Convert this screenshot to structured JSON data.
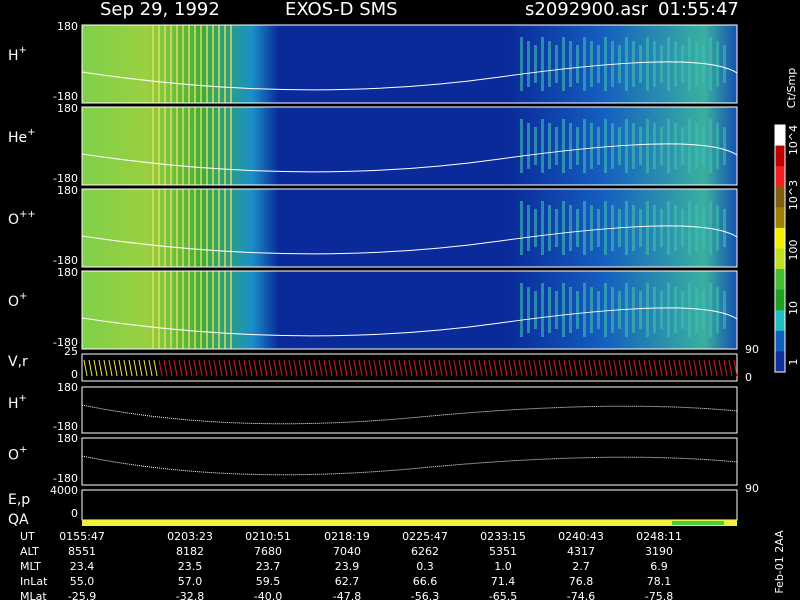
{
  "header": {
    "date": "Sep 29, 1992",
    "instrument": "EXOS-D SMS",
    "file": "s2092900.asr",
    "time": "01:55:47"
  },
  "panels": [
    {
      "label": "H",
      "sup": "+",
      "ticks": [
        "180",
        "-180"
      ]
    },
    {
      "label": "He",
      "sup": "+",
      "ticks": [
        "180",
        "-180"
      ]
    },
    {
      "label": "O",
      "sup": "++",
      "ticks": [
        "180",
        "-180"
      ]
    },
    {
      "label": "O",
      "sup": "+",
      "ticks": [
        "180",
        "-180"
      ]
    }
  ],
  "vr": {
    "label": "V,r",
    "left_ticks": [
      "25",
      "0"
    ],
    "right_ticks": [
      "90",
      "0"
    ]
  },
  "line_panels": [
    {
      "label": "H",
      "sup": "+",
      "ticks": [
        "180",
        "-180"
      ]
    },
    {
      "label": "O",
      "sup": "+",
      "ticks": [
        "180",
        "-180"
      ]
    }
  ],
  "ep": {
    "label": "E,p",
    "left_tick": "4000",
    "right_tick": "90"
  },
  "qa": {
    "label": "QA",
    "tick": "0"
  },
  "colorbar": {
    "title": "Ct/Smp",
    "labels": [
      "10^4",
      "10^3",
      "100",
      "10",
      "1"
    ]
  },
  "table": {
    "rows": [
      {
        "name": "UT",
        "values": [
          "0155:47",
          "0203:23",
          "0210:51",
          "0218:19",
          "0225:47",
          "0233:15",
          "0240:43",
          "0248:11"
        ]
      },
      {
        "name": "ALT",
        "values": [
          "8551",
          "8182",
          "7680",
          "7040",
          "6262",
          "5351",
          "4317",
          "3190"
        ]
      },
      {
        "name": "MLT",
        "values": [
          "23.4",
          "23.5",
          "23.7",
          "23.9",
          "0.3",
          "1.0",
          "2.7",
          "6.9"
        ]
      },
      {
        "name": "InLat",
        "values": [
          "55.0",
          "57.0",
          "59.5",
          "62.7",
          "66.6",
          "71.4",
          "76.8",
          "78.1"
        ]
      },
      {
        "name": "MLat",
        "values": [
          "-25.9",
          "-32.8",
          "-40.0",
          "-47.8",
          "-56.3",
          "-65.5",
          "-74.6",
          "-75.8"
        ]
      }
    ]
  },
  "footer_note": "Feb-01 2AA"
}
